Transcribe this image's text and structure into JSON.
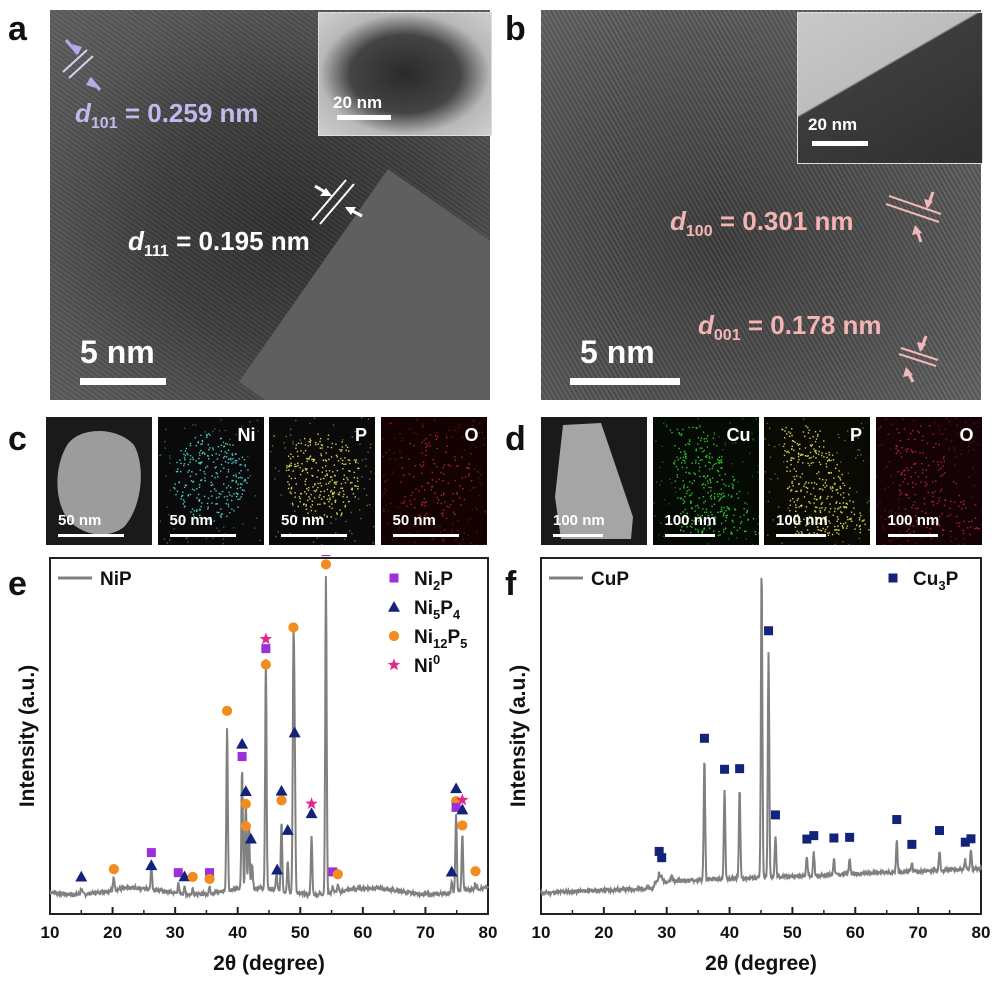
{
  "panels": {
    "a": {
      "letter": "a",
      "scale": "5 nm",
      "inset_scale": "20 nm",
      "d1": {
        "sym": "d",
        "sub": "101",
        "val": "= 0.259 nm"
      },
      "d2": {
        "sym": "d",
        "sub": "111",
        "val": "= 0.195 nm"
      }
    },
    "b": {
      "letter": "b",
      "scale": "5 nm",
      "inset_scale": "20 nm",
      "d1": {
        "sym": "d",
        "sub": "100",
        "val": "= 0.301 nm"
      },
      "d2": {
        "sym": "d",
        "sub": "001",
        "val": "= 0.178 nm"
      }
    },
    "c": {
      "letter": "c",
      "maps": [
        {
          "label": "",
          "scale": "50 nm",
          "color": "#bdbdbd",
          "bg": "#1a1a1a"
        },
        {
          "label": "Ni",
          "scale": "50 nm",
          "color": "#4fd5d5",
          "bg": "#0a0a0a"
        },
        {
          "label": "P",
          "scale": "50 nm",
          "color": "#e6dc5a",
          "bg": "#0a0a0a"
        },
        {
          "label": "O",
          "scale": "50 nm",
          "color": "#c0262d",
          "bg": "#140202"
        }
      ]
    },
    "d": {
      "letter": "d",
      "maps": [
        {
          "label": "",
          "scale": "100 nm",
          "color": "#c8c8c8",
          "bg": "#1a1a1a"
        },
        {
          "label": "Cu",
          "scale": "100 nm",
          "color": "#2fcc2f",
          "bg": "#050a05"
        },
        {
          "label": "P",
          "scale": "100 nm",
          "color": "#e6dc4a",
          "bg": "#0a0a05"
        },
        {
          "label": "O",
          "scale": "100 nm",
          "color": "#c0263d",
          "bg": "#140206"
        }
      ]
    },
    "e": {
      "letter": "e"
    },
    "f": {
      "letter": "f"
    }
  },
  "chart_data": [
    {
      "type": "line",
      "panel": "e",
      "xlabel": "2θ (degree)",
      "ylabel": "Intensity (a.u.)",
      "xlim": [
        10,
        80
      ],
      "xticks": [
        10,
        20,
        30,
        40,
        50,
        60,
        70,
        80
      ],
      "y_ticks_shown": false,
      "series": [
        {
          "name": "NiP",
          "color": "#808080",
          "peaks": [
            {
              "x": 15.0,
              "h": 0.02
            },
            {
              "x": 20.2,
              "h": 0.04
            },
            {
              "x": 26.2,
              "h": 0.07
            },
            {
              "x": 30.5,
              "h": 0.03
            },
            {
              "x": 31.5,
              "h": 0.02
            },
            {
              "x": 32.8,
              "h": 0.02
            },
            {
              "x": 35.5,
              "h": 0.02
            },
            {
              "x": 38.3,
              "h": 0.52
            },
            {
              "x": 40.7,
              "h": 0.38
            },
            {
              "x": 41.3,
              "h": 0.27
            },
            {
              "x": 41.8,
              "h": 0.2
            },
            {
              "x": 42.3,
              "h": 0.08
            },
            {
              "x": 44.5,
              "h": 0.72
            },
            {
              "x": 46.2,
              "h": 0.05
            },
            {
              "x": 47.0,
              "h": 0.22
            },
            {
              "x": 48.0,
              "h": 0.1
            },
            {
              "x": 48.9,
              "h": 0.72
            },
            {
              "x": 49.1,
              "h": 0.43
            },
            {
              "x": 51.8,
              "h": 0.18
            },
            {
              "x": 54.1,
              "h": 1.0
            },
            {
              "x": 55.2,
              "h": 0.02
            },
            {
              "x": 56.0,
              "h": 0.02
            },
            {
              "x": 74.2,
              "h": 0.03
            },
            {
              "x": 74.9,
              "h": 0.24
            },
            {
              "x": 75.9,
              "h": 0.18
            },
            {
              "x": 78.0,
              "h": 0.02
            }
          ]
        }
      ],
      "legend": [
        {
          "name": "Ni2P",
          "base": "Ni",
          "sub1": "2",
          "mid": "P",
          "sub2": "",
          "sup": "",
          "marker": "square",
          "color": "#9b30d9"
        },
        {
          "name": "Ni5P4",
          "base": "Ni",
          "sub1": "5",
          "mid": "P",
          "sub2": "4",
          "sup": "",
          "marker": "triangle",
          "color": "#14237a"
        },
        {
          "name": "Ni12P5",
          "base": "Ni",
          "sub1": "12",
          "mid": "P",
          "sub2": "5",
          "sup": "",
          "marker": "circle",
          "color": "#f28c1e"
        },
        {
          "name": "Ni0",
          "base": "Ni",
          "sub1": "",
          "mid": "",
          "sub2": "",
          "sup": "0",
          "marker": "star",
          "color": "#e0288c"
        }
      ],
      "markers": [
        {
          "x": 15.0,
          "h": 0.03,
          "type": "triangle"
        },
        {
          "x": 20.2,
          "h": 0.04,
          "type": "circle"
        },
        {
          "x": 26.2,
          "h": 0.09,
          "type": "square"
        },
        {
          "x": 26.2,
          "h": 0.05,
          "type": "triangle"
        },
        {
          "x": 30.5,
          "h": 0.04,
          "type": "square"
        },
        {
          "x": 31.5,
          "h": 0.03,
          "type": "triangle"
        },
        {
          "x": 32.8,
          "h": 0.03,
          "type": "circle"
        },
        {
          "x": 35.5,
          "h": 0.04,
          "type": "square"
        },
        {
          "x": 35.5,
          "h": 0.02,
          "type": "circle"
        },
        {
          "x": 38.3,
          "h": 0.54,
          "type": "circle"
        },
        {
          "x": 40.7,
          "h": 0.43,
          "type": "triangle"
        },
        {
          "x": 40.7,
          "h": 0.39,
          "type": "square"
        },
        {
          "x": 41.3,
          "h": 0.28,
          "type": "triangle"
        },
        {
          "x": 41.3,
          "h": 0.24,
          "type": "circle"
        },
        {
          "x": 41.3,
          "h": 0.17,
          "type": "circle"
        },
        {
          "x": 42.1,
          "h": 0.13,
          "type": "triangle"
        },
        {
          "x": 44.5,
          "h": 0.76,
          "type": "star"
        },
        {
          "x": 44.5,
          "h": 0.73,
          "type": "square"
        },
        {
          "x": 44.5,
          "h": 0.68,
          "type": "circle"
        },
        {
          "x": 46.3,
          "h": 0.04,
          "type": "triangle"
        },
        {
          "x": 47.0,
          "h": 0.29,
          "type": "triangle"
        },
        {
          "x": 47.0,
          "h": 0.26,
          "type": "circle"
        },
        {
          "x": 48.0,
          "h": 0.17,
          "type": "triangle"
        },
        {
          "x": 48.9,
          "h": 0.81,
          "type": "circle"
        },
        {
          "x": 49.1,
          "h": 0.48,
          "type": "triangle"
        },
        {
          "x": 51.8,
          "h": 0.26,
          "type": "star"
        },
        {
          "x": 51.8,
          "h": 0.23,
          "type": "triangle"
        },
        {
          "x": 54.1,
          "h": 1.08,
          "type": "triangle"
        },
        {
          "x": 54.1,
          "h": 1.05,
          "type": "square"
        },
        {
          "x": 54.1,
          "h": 1.01,
          "type": "circle"
        },
        {
          "x": 55.2,
          "h": 0.04,
          "type": "square"
        },
        {
          "x": 56.0,
          "h": 0.03,
          "type": "circle"
        },
        {
          "x": 74.2,
          "h": 0.04,
          "type": "triangle"
        },
        {
          "x": 74.9,
          "h": 0.3,
          "type": "triangle"
        },
        {
          "x": 74.9,
          "h": 0.26,
          "type": "circle"
        },
        {
          "x": 74.9,
          "h": 0.24,
          "type": "square"
        },
        {
          "x": 75.9,
          "h": 0.26,
          "type": "star"
        },
        {
          "x": 75.9,
          "h": 0.23,
          "type": "triangle"
        },
        {
          "x": 75.9,
          "h": 0.18,
          "type": "circle"
        },
        {
          "x": 78.0,
          "h": 0.03,
          "type": "circle"
        }
      ]
    },
    {
      "type": "line",
      "panel": "f",
      "xlabel": "2θ (degree)",
      "ylabel": "Intensity (a.u.)",
      "xlim": [
        10,
        80
      ],
      "xticks": [
        10,
        20,
        30,
        40,
        50,
        60,
        70,
        80
      ],
      "y_ticks_shown": false,
      "series": [
        {
          "name": "CuP",
          "color": "#808080",
          "peaks": [
            {
              "x": 28.8,
              "h": 0.03
            },
            {
              "x": 29.2,
              "h": 0.02
            },
            {
              "x": 30.8,
              "h": 0.02
            },
            {
              "x": 36.0,
              "h": 0.38
            },
            {
              "x": 39.2,
              "h": 0.28
            },
            {
              "x": 41.6,
              "h": 0.28
            },
            {
              "x": 45.1,
              "h": 0.97
            },
            {
              "x": 46.2,
              "h": 0.71
            },
            {
              "x": 47.3,
              "h": 0.13
            },
            {
              "x": 52.3,
              "h": 0.06
            },
            {
              "x": 53.4,
              "h": 0.07
            },
            {
              "x": 56.6,
              "h": 0.05
            },
            {
              "x": 59.1,
              "h": 0.05
            },
            {
              "x": 66.6,
              "h": 0.1
            },
            {
              "x": 69.0,
              "h": 0.03
            },
            {
              "x": 73.4,
              "h": 0.06
            },
            {
              "x": 77.5,
              "h": 0.03
            },
            {
              "x": 78.4,
              "h": 0.06
            }
          ]
        }
      ],
      "legend": [
        {
          "name": "Cu3P",
          "base": "Cu",
          "sub1": "3",
          "mid": "P",
          "sub2": "",
          "sup": "",
          "marker": "square",
          "color": "#14237a"
        }
      ],
      "markers": [
        {
          "x": 28.8,
          "h": 0.07,
          "type": "square"
        },
        {
          "x": 29.2,
          "h": 0.05,
          "type": "square"
        },
        {
          "x": 36.0,
          "h": 0.42,
          "type": "square"
        },
        {
          "x": 39.2,
          "h": 0.32,
          "type": "square"
        },
        {
          "x": 41.6,
          "h": 0.32,
          "type": "square"
        },
        {
          "x": 45.1,
          "h": 1.01,
          "type": "square"
        },
        {
          "x": 46.2,
          "h": 0.75,
          "type": "square"
        },
        {
          "x": 47.3,
          "h": 0.17,
          "type": "square"
        },
        {
          "x": 52.3,
          "h": 0.09,
          "type": "square"
        },
        {
          "x": 53.4,
          "h": 0.1,
          "type": "square"
        },
        {
          "x": 56.6,
          "h": 0.09,
          "type": "square"
        },
        {
          "x": 59.1,
          "h": 0.09,
          "type": "square"
        },
        {
          "x": 66.6,
          "h": 0.14,
          "type": "square"
        },
        {
          "x": 69.0,
          "h": 0.06,
          "type": "square"
        },
        {
          "x": 73.4,
          "h": 0.1,
          "type": "square"
        },
        {
          "x": 77.5,
          "h": 0.06,
          "type": "square"
        },
        {
          "x": 78.4,
          "h": 0.07,
          "type": "square"
        }
      ]
    }
  ]
}
